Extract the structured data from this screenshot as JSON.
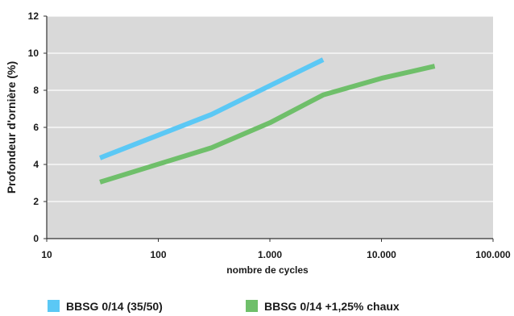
{
  "chart_data": {
    "type": "line",
    "xlabel": "nombre de cycles",
    "ylabel": "Profondeur d'ornière (%)",
    "xscale": "log",
    "xlim": [
      10,
      100000
    ],
    "ylim": [
      0,
      12
    ],
    "grid": true,
    "legend": "bottom",
    "x_ticks": [
      {
        "value": 10,
        "label": "10"
      },
      {
        "value": 100,
        "label": "100"
      },
      {
        "value": 1000,
        "label": "1.000"
      },
      {
        "value": 10000,
        "label": "10.000"
      },
      {
        "value": 100000,
        "label": "100.000"
      }
    ],
    "y_ticks": [
      {
        "value": 0,
        "label": "0"
      },
      {
        "value": 2,
        "label": "2"
      },
      {
        "value": 4,
        "label": "4"
      },
      {
        "value": 6,
        "label": "6"
      },
      {
        "value": 8,
        "label": "8"
      },
      {
        "value": 10,
        "label": "10"
      },
      {
        "value": 12,
        "label": "12"
      }
    ],
    "series": [
      {
        "name": "BBSG 0/14 (35/50)",
        "color": "#5bc8f5",
        "points": [
          [
            30,
            4.35
          ],
          [
            300,
            6.7
          ],
          [
            1000,
            8.25
          ],
          [
            3000,
            9.65
          ]
        ]
      },
      {
        "name": "BBSG 0/14 +1,25% chaux",
        "color": "#6fbf6a",
        "points": [
          [
            30,
            3.05
          ],
          [
            300,
            4.9
          ],
          [
            1000,
            6.25
          ],
          [
            3000,
            7.75
          ],
          [
            10000,
            8.65
          ],
          [
            30000,
            9.3
          ]
        ]
      }
    ]
  }
}
